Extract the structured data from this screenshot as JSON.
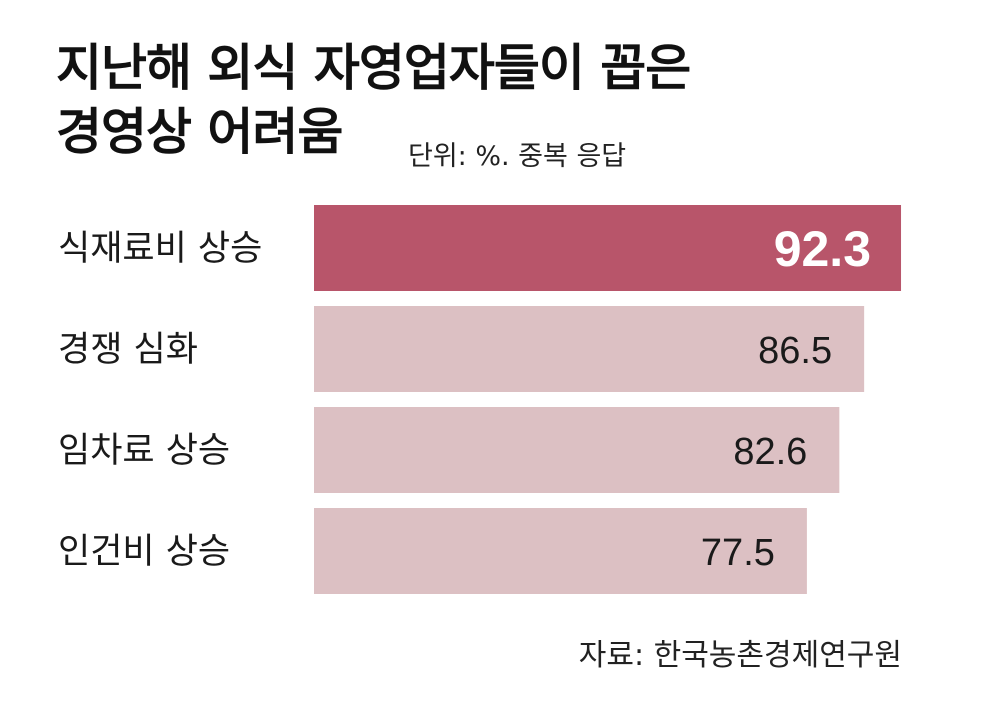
{
  "title_line1": "지난해 외식 자영업자들이 꼽은",
  "title_line2": "경영상 어려움",
  "unit": "단위: %. 중복 응답",
  "source": "자료: 한국농촌경제연구원",
  "colors": {
    "highlight_bar": "#b8556a",
    "normal_bar": "#dcc0c3",
    "highlight_value": "#ffffff",
    "normal_value": "#1a1a1a"
  },
  "chart_data": {
    "type": "bar",
    "orientation": "horizontal",
    "categories": [
      "식재료비 상승",
      "경쟁 심화",
      "임차료 상승",
      "인건비 상승"
    ],
    "values": [
      92.3,
      86.5,
      82.6,
      77.5
    ],
    "value_labels": [
      "92.3",
      "86.5",
      "82.6",
      "77.5"
    ],
    "highlight_index": 0,
    "xlim": [
      0,
      100
    ],
    "grid": false,
    "legend": "none"
  }
}
